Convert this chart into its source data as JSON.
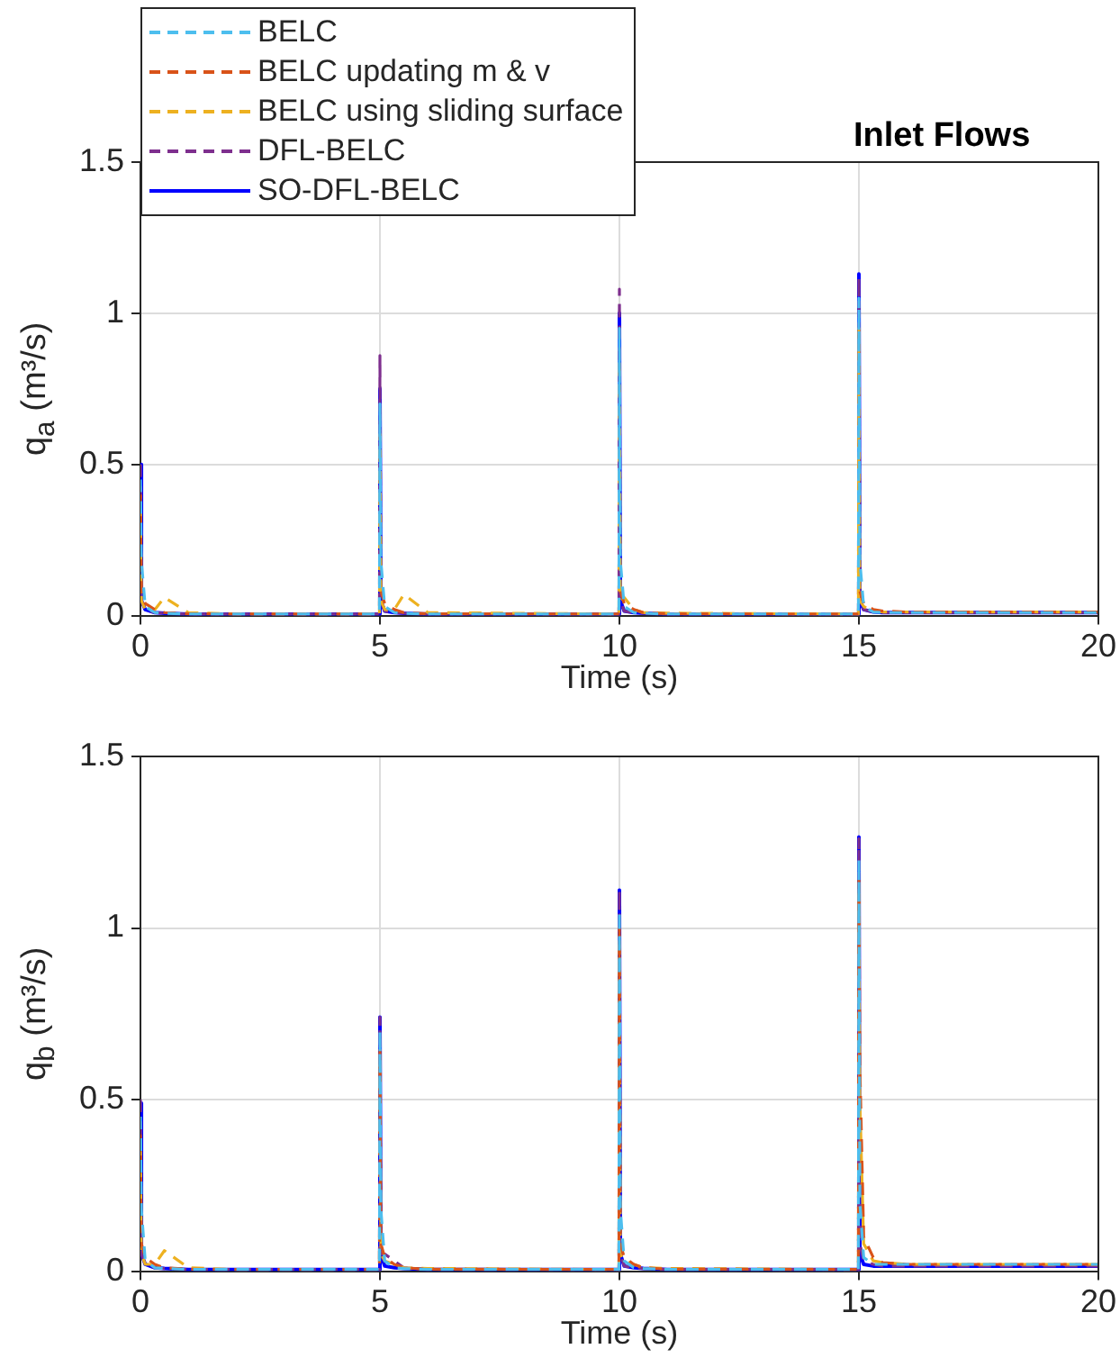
{
  "chart_data": [
    {
      "type": "line",
      "title": "Inlet Flows",
      "xlabel": "Time (s)",
      "ylabel": "q$_{a}$ (m³/s)",
      "x": [
        0,
        0.02,
        0.1,
        0.3,
        0.5,
        1,
        2,
        4.99,
        5,
        5.02,
        5.1,
        5.3,
        5.5,
        6,
        9.99,
        10,
        10.02,
        10.1,
        10.3,
        10.5,
        11,
        14.99,
        15,
        15.02,
        15.1,
        15.3,
        15.5,
        16,
        20
      ],
      "xlim": [
        0,
        20
      ],
      "xticks": [
        0,
        5,
        10,
        15,
        20
      ],
      "ylim": [
        0,
        1.5
      ],
      "yticks": [
        0,
        0.5,
        1,
        1.5
      ],
      "grid": true,
      "legend": "top left",
      "marker": "none",
      "series": [
        {
          "name": "BELC",
          "color": "#4dbeee",
          "line_style": "dashed",
          "values": [
            0.45,
            0.18,
            0.03,
            0.01,
            0.008,
            0.005,
            0.005,
            0.005,
            0.7,
            0.18,
            0.03,
            0.01,
            0.008,
            0.005,
            0.005,
            0.95,
            0.18,
            0.03,
            0.01,
            0.008,
            0.005,
            0.005,
            1.05,
            0.18,
            0.03,
            0.012,
            0.01,
            0.01,
            0.01
          ]
        },
        {
          "name": "BELC updating m & v",
          "color": "#d95319",
          "line_style": "dashed",
          "values": [
            0.4,
            0.08,
            0.04,
            0.02,
            0.01,
            0.006,
            0.005,
            0.005,
            null,
            0.08,
            0.04,
            0.02,
            0.01,
            0.006,
            0.005,
            null,
            0.08,
            0.04,
            0.02,
            0.01,
            0.006,
            0.005,
            null,
            0.08,
            0.04,
            0.02,
            0.015,
            0.012,
            0.012
          ]
        },
        {
          "name": "BELC using sliding surface",
          "color": "#edb120",
          "line_style": "dashed",
          "values": [
            0.35,
            0.05,
            0.02,
            0.02,
            0.06,
            0.01,
            0.005,
            0.005,
            0.6,
            0.05,
            0.02,
            0.02,
            0.07,
            0.01,
            0.005,
            0.85,
            0.05,
            0.06,
            0.02,
            0.01,
            0.008,
            0.005,
            0.95,
            0.05,
            0.03,
            0.015,
            0.012,
            0.012,
            0.012
          ]
        },
        {
          "name": "DFL-BELC",
          "color": "#7e2f8e",
          "line_style": "dashed",
          "values": [
            0.5,
            0.05,
            0.02,
            0.01,
            0.008,
            0.005,
            0.005,
            0.005,
            0.86,
            0.05,
            0.015,
            0.01,
            0.008,
            0.005,
            0.005,
            1.08,
            0.05,
            0.015,
            0.01,
            0.008,
            0.005,
            0.005,
            1.12,
            0.05,
            0.02,
            0.012,
            0.01,
            0.01,
            0.01
          ]
        },
        {
          "name": "SO-DFL-BELC",
          "color": "#0000ff",
          "line_style": "solid",
          "values": [
            0.5,
            0.05,
            0.02,
            0.01,
            0.008,
            0.005,
            0.005,
            0.005,
            0.75,
            0.05,
            0.015,
            0.01,
            0.008,
            0.005,
            0.005,
            1.0,
            0.05,
            0.015,
            0.01,
            0.008,
            0.005,
            0.005,
            1.13,
            0.05,
            0.02,
            0.012,
            0.01,
            0.01,
            0.01
          ]
        }
      ]
    },
    {
      "type": "line",
      "xlabel": "Time (s)",
      "ylabel": "q$_{b}$ (m³/s)",
      "x": [
        0,
        0.02,
        0.1,
        0.3,
        0.5,
        1,
        2,
        4.99,
        5,
        5.02,
        5.1,
        5.3,
        5.5,
        6,
        9.99,
        10,
        10.02,
        10.1,
        10.3,
        10.5,
        11,
        14.99,
        15,
        15.02,
        15.1,
        15.3,
        15.5,
        16,
        20
      ],
      "xlim": [
        0,
        20
      ],
      "xticks": [
        0,
        5,
        10,
        15,
        20
      ],
      "ylim": [
        0,
        1.5
      ],
      "yticks": [
        0,
        0.5,
        1,
        1.5
      ],
      "grid": true,
      "legend": false,
      "marker": "none",
      "series": [
        {
          "color": "#4dbeee",
          "line_style": "dashed",
          "values": [
            0.45,
            0.18,
            0.03,
            0.01,
            0.008,
            0.005,
            0.005,
            0.005,
            0.7,
            0.18,
            0.03,
            0.01,
            0.008,
            0.005,
            0.005,
            1.05,
            0.18,
            0.03,
            0.01,
            0.008,
            0.005,
            0.005,
            1.2,
            0.2,
            0.04,
            0.02,
            0.02,
            0.02,
            0.02
          ]
        },
        {
          "color": "#d95319",
          "line_style": "dashed",
          "values": [
            0.4,
            0.08,
            0.04,
            0.02,
            0.01,
            0.006,
            0.005,
            0.005,
            0.65,
            0.08,
            0.04,
            0.02,
            0.01,
            0.006,
            0.005,
            1.0,
            0.08,
            0.04,
            0.02,
            0.01,
            0.006,
            0.005,
            1.15,
            0.6,
            0.1,
            0.04,
            0.025,
            0.02,
            0.02
          ]
        },
        {
          "color": "#edb120",
          "line_style": "dashed",
          "values": [
            0.35,
            0.05,
            0.02,
            0.02,
            0.06,
            0.01,
            0.005,
            0.005,
            0.6,
            0.05,
            0.03,
            0.02,
            0.01,
            0.008,
            0.005,
            0.95,
            0.05,
            0.03,
            0.02,
            0.01,
            0.008,
            0.005,
            1.1,
            0.5,
            0.08,
            0.03,
            0.025,
            0.02,
            0.02
          ]
        },
        {
          "color": "#7e2f8e",
          "line_style": "dashed",
          "values": [
            0.5,
            0.05,
            0.02,
            0.01,
            0.008,
            0.005,
            0.005,
            0.005,
            0.74,
            0.05,
            0.05,
            0.03,
            0.01,
            0.005,
            0.005,
            1.11,
            0.05,
            0.015,
            0.01,
            0.008,
            0.005,
            0.005,
            1.26,
            0.08,
            0.03,
            0.02,
            0.015,
            0.015,
            0.015
          ]
        },
        {
          "color": "#0000ff",
          "line_style": "solid",
          "values": [
            0.49,
            0.05,
            0.02,
            0.01,
            0.008,
            0.005,
            0.005,
            0.005,
            0.74,
            0.05,
            0.015,
            0.01,
            0.008,
            0.005,
            0.005,
            1.11,
            0.05,
            0.015,
            0.01,
            0.008,
            0.005,
            0.005,
            1.265,
            0.05,
            0.02,
            0.015,
            0.015,
            0.015,
            0.015
          ]
        }
      ]
    }
  ]
}
